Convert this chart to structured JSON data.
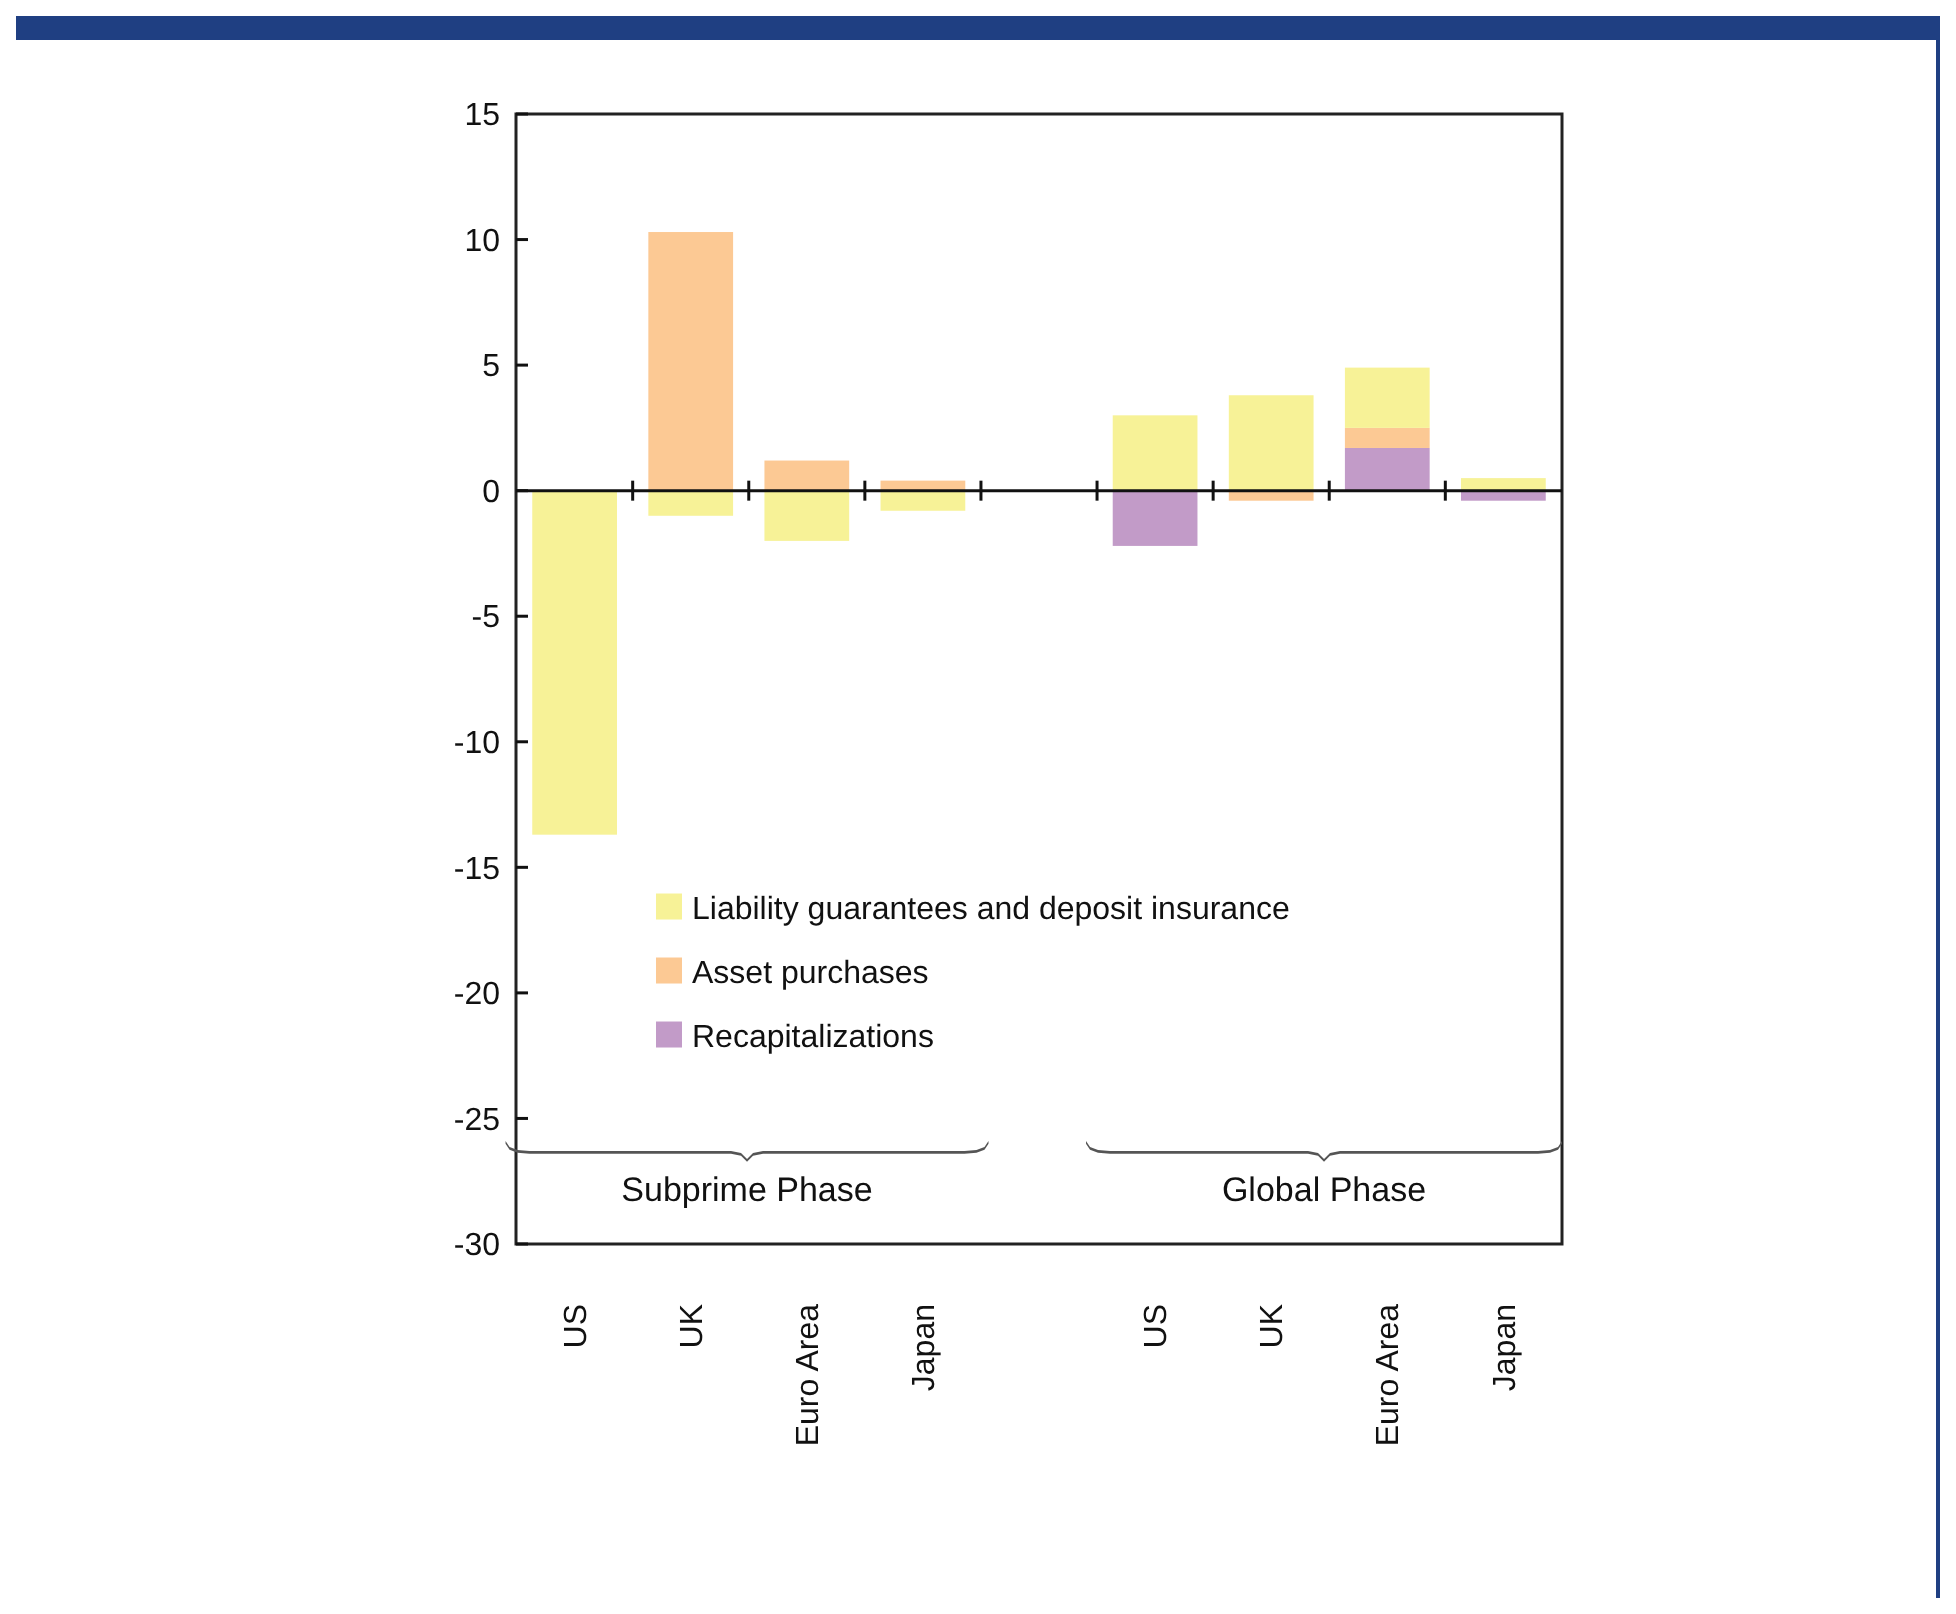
{
  "chart_data": {
    "type": "bar",
    "stacked": true,
    "categories": [
      "US",
      "UK",
      "Euro Area",
      "Japan",
      null,
      "US",
      "UK",
      "Euro Area",
      "Japan"
    ],
    "series": [
      {
        "name": "Recapitalizations",
        "color": "#c29bc8",
        "values": [
          null,
          null,
          null,
          null,
          null,
          -2.2,
          null,
          1.7,
          -0.4
        ]
      },
      {
        "name": "Asset purchases",
        "color": "#fcc994",
        "values": [
          null,
          10.3,
          1.2,
          0.4,
          null,
          null,
          -0.4,
          0.8,
          null
        ]
      },
      {
        "name": "Liability guarantees and deposit insurance",
        "color": "#f7f297",
        "values": [
          -13.7,
          -1.0,
          -2.0,
          -0.8,
          null,
          3.0,
          3.8,
          2.4,
          0.5
        ]
      }
    ],
    "ylim": [
      -30,
      15
    ],
    "yticks": [
      -30,
      -25,
      -20,
      -15,
      -10,
      -5,
      0,
      5,
      10,
      15
    ],
    "legend": "bottom left",
    "annotations": [
      "Subprime Phase",
      "Global Phase"
    ]
  }
}
